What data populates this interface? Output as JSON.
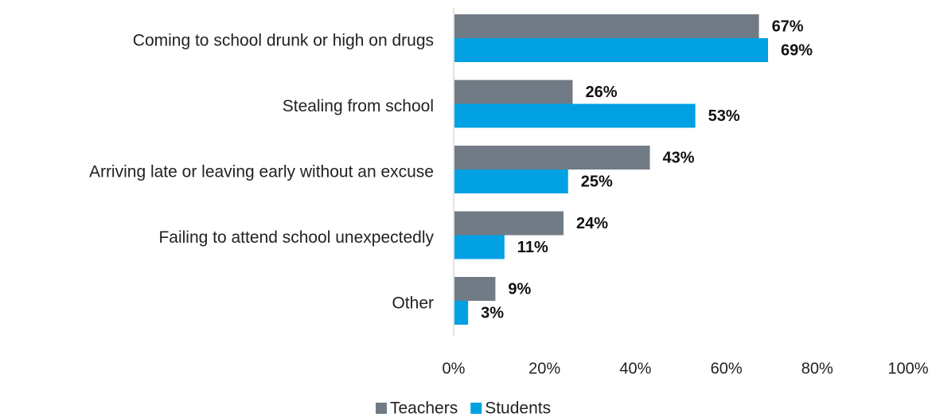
{
  "chart_data": {
    "type": "bar",
    "orientation": "horizontal",
    "categories": [
      "Coming to school drunk or high on drugs",
      "Stealing from school",
      "Arriving late or leaving early without an excuse",
      "Failing to attend school unexpectedly",
      "Other"
    ],
    "series": [
      {
        "name": "Teachers",
        "color": "#717b85",
        "values": [
          67,
          26,
          43,
          24,
          9
        ],
        "labels": [
          "67%",
          "26%",
          "43%",
          "24%",
          "9%"
        ]
      },
      {
        "name": "Students",
        "color": "#00a0e3",
        "values": [
          69,
          53,
          25,
          11,
          3
        ],
        "labels": [
          "69%",
          "53%",
          "25%",
          "11%",
          "3%"
        ]
      }
    ],
    "xlim": [
      0,
      100
    ],
    "x_ticks": [
      0,
      20,
      40,
      60,
      80,
      100
    ],
    "x_tick_labels": [
      "0%",
      "20%",
      "40%",
      "60%",
      "80%",
      "100%"
    ],
    "grid": false,
    "legend_position": "bottom"
  }
}
